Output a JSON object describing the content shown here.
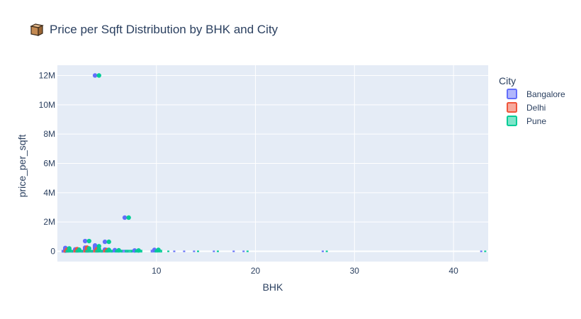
{
  "title_icon": "cube-box-icon",
  "chart_data": {
    "type": "box",
    "title": "Price per Sqft Distribution by BHK and City",
    "xlabel": "BHK",
    "ylabel": "price_per_sqft",
    "xlim": [
      0,
      43.5
    ],
    "ylim": [
      -700000,
      12700000
    ],
    "x_ticks": [
      10,
      20,
      30,
      40
    ],
    "x_tick_labels": [
      "10",
      "20",
      "30",
      "40"
    ],
    "y_ticks": [
      0,
      2000000,
      4000000,
      6000000,
      8000000,
      10000000,
      12000000
    ],
    "y_tick_labels": [
      "0",
      "2M",
      "4M",
      "6M",
      "8M",
      "10M",
      "12M"
    ],
    "legend_title": "City",
    "legend_position": "right",
    "grid": true,
    "plot_bgcolor": "#E5ECF6",
    "series": [
      {
        "name": "Bangalore",
        "color": "#636EFA",
        "boxes": [
          {
            "x": 0.8,
            "q1": 4000,
            "q3": 9000,
            "outliers": [
              230000,
              150000,
              50000
            ]
          },
          {
            "x": 1.8,
            "q1": 4500,
            "q3": 10000,
            "outliers": [
              130000,
              90000
            ]
          },
          {
            "x": 2.8,
            "q1": 5000,
            "q3": 11000,
            "outliers": [
              700000,
              250000,
              150000
            ]
          },
          {
            "x": 3.8,
            "q1": 6000,
            "q3": 13000,
            "outliers": [
              12000000,
              400000,
              300000,
              200000
            ]
          },
          {
            "x": 4.8,
            "q1": 6500,
            "q3": 14000,
            "outliers": [
              650000,
              120000
            ]
          },
          {
            "x": 5.8,
            "q1": 7000,
            "q3": 15000,
            "outliers": [
              80000
            ]
          },
          {
            "x": 6.8,
            "q1": 7000,
            "q3": 16000,
            "outliers": [
              2300000
            ]
          },
          {
            "x": 7.8,
            "q1": 7500,
            "q3": 16000,
            "outliers": [
              60000
            ]
          },
          {
            "x": 9.8,
            "q1": 8000,
            "q3": 16000,
            "outliers": [
              100000
            ]
          }
        ],
        "sparse_x": [
          11.8,
          12.8,
          13.8,
          15.8,
          17.8,
          18.8,
          26.8,
          42.8
        ]
      },
      {
        "name": "Delhi",
        "color": "#EF553B",
        "boxes": [
          {
            "x": 1.0,
            "q1": 8000,
            "q3": 15000,
            "outliers": [
              120000
            ]
          },
          {
            "x": 2.0,
            "q1": 9000,
            "q3": 17000,
            "outliers": [
              150000,
              100000
            ]
          },
          {
            "x": 3.0,
            "q1": 10000,
            "q3": 20000,
            "outliers": [
              250000,
              180000
            ]
          },
          {
            "x": 4.0,
            "q1": 11000,
            "q3": 22000,
            "outliers": [
              140000
            ]
          },
          {
            "x": 5.0,
            "q1": 12000,
            "q3": 24000,
            "outliers": [
              90000
            ]
          }
        ],
        "sparse_x": []
      },
      {
        "name": "Pune",
        "color": "#00CC96",
        "boxes": [
          {
            "x": 1.2,
            "q1": 4500,
            "q3": 9500,
            "outliers": [
              200000,
              100000
            ]
          },
          {
            "x": 2.2,
            "q1": 5000,
            "q3": 10500,
            "outliers": [
              110000
            ]
          },
          {
            "x": 3.2,
            "q1": 5500,
            "q3": 11500,
            "outliers": [
              700000,
              200000
            ]
          },
          {
            "x": 4.2,
            "q1": 6000,
            "q3": 13000,
            "outliers": [
              12000000,
              350000,
              150000
            ]
          },
          {
            "x": 5.2,
            "q1": 6500,
            "q3": 14000,
            "outliers": [
              650000,
              100000
            ]
          },
          {
            "x": 6.2,
            "q1": 7000,
            "q3": 15000,
            "outliers": [
              70000
            ]
          },
          {
            "x": 7.2,
            "q1": 7000,
            "q3": 16000,
            "outliers": [
              2300000
            ]
          },
          {
            "x": 8.2,
            "q1": 7500,
            "q3": 16000,
            "outliers": [
              60000
            ]
          },
          {
            "x": 10.2,
            "q1": 8000,
            "q3": 16000,
            "outliers": [
              100000
            ]
          }
        ],
        "sparse_x": [
          11.2,
          14.2,
          16.2,
          19.2,
          27.2,
          43.2
        ]
      }
    ]
  }
}
